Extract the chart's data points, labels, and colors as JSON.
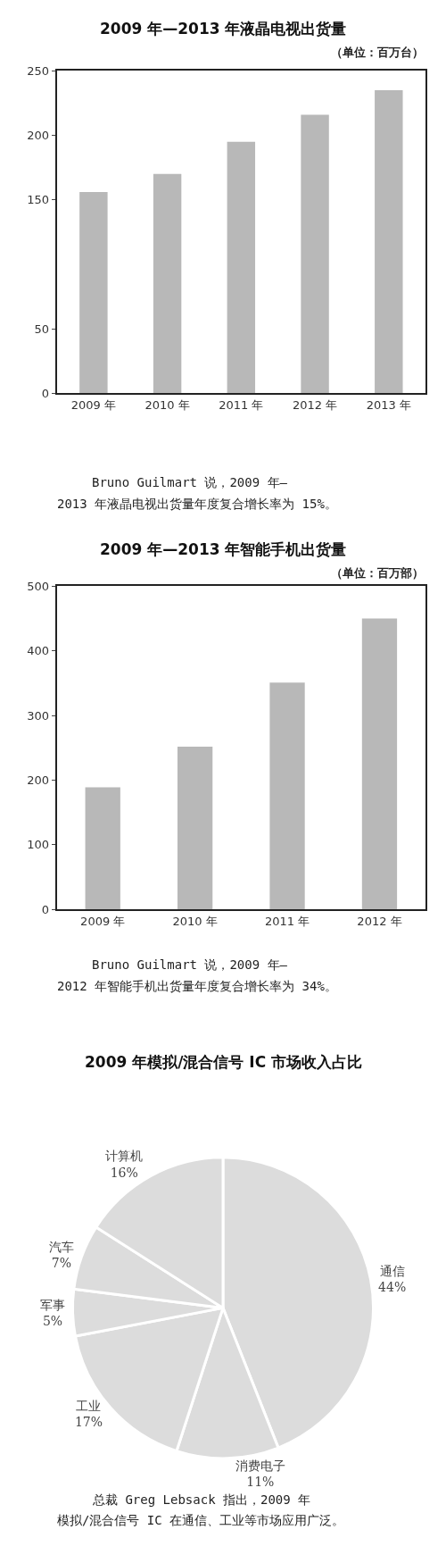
{
  "chart_data": [
    {
      "type": "bar",
      "title": "2009 年—2013 年液晶电视出货量",
      "subtitle": "（单位：百万台）",
      "categories": [
        "2009 年",
        "2010 年",
        "2011 年",
        "2012 年",
        "2013 年"
      ],
      "values": [
        156,
        170,
        195,
        216,
        235
      ],
      "color": "#b8b8b8",
      "ylim": [
        0,
        250
      ],
      "yticks": [
        0,
        50,
        150,
        200,
        250
      ],
      "annotations": [
        "Bruno Guilmart 说，2009 年—",
        "2013 年液晶电视出货量年度复合增长率为 15%。"
      ]
    },
    {
      "type": "bar",
      "title": "2009 年—2013 年智能手机出货量",
      "subtitle": "（单位：百万部）",
      "categories": [
        "2009 年",
        "2010 年",
        "2011 年",
        "2012 年"
      ],
      "values": [
        189,
        252,
        351,
        450
      ],
      "color": "#b8b8b8",
      "ylim": [
        0,
        500
      ],
      "yticks": [
        0,
        100,
        200,
        300,
        400,
        500
      ],
      "annotations": [
        "Bruno Guilmart 说，2009 年—",
        "2012 年智能手机出货量年度复合增长率为 34%。"
      ]
    },
    {
      "type": "pie",
      "title": "2009 年模拟/混合信号 IC 市场收入占比",
      "categories": [
        "通信",
        "消费电子",
        "工业",
        "军事",
        "汽车",
        "计算机"
      ],
      "values": [
        44,
        11,
        17,
        5,
        7,
        16
      ],
      "colors": [
        "#dcdcdc",
        "#dcdcdc",
        "#dcdcdc",
        "#dcdcdc",
        "#dcdcdc",
        "#dcdcdc"
      ],
      "value_labels": [
        "44%",
        "11%",
        "17%",
        "5%",
        "7%",
        "16%"
      ],
      "annotations": [
        "总裁 Greg Lebsack 指出，2009 年",
        "模拟/混合信号 IC 在通信、工业等市场应用广泛。"
      ]
    }
  ]
}
